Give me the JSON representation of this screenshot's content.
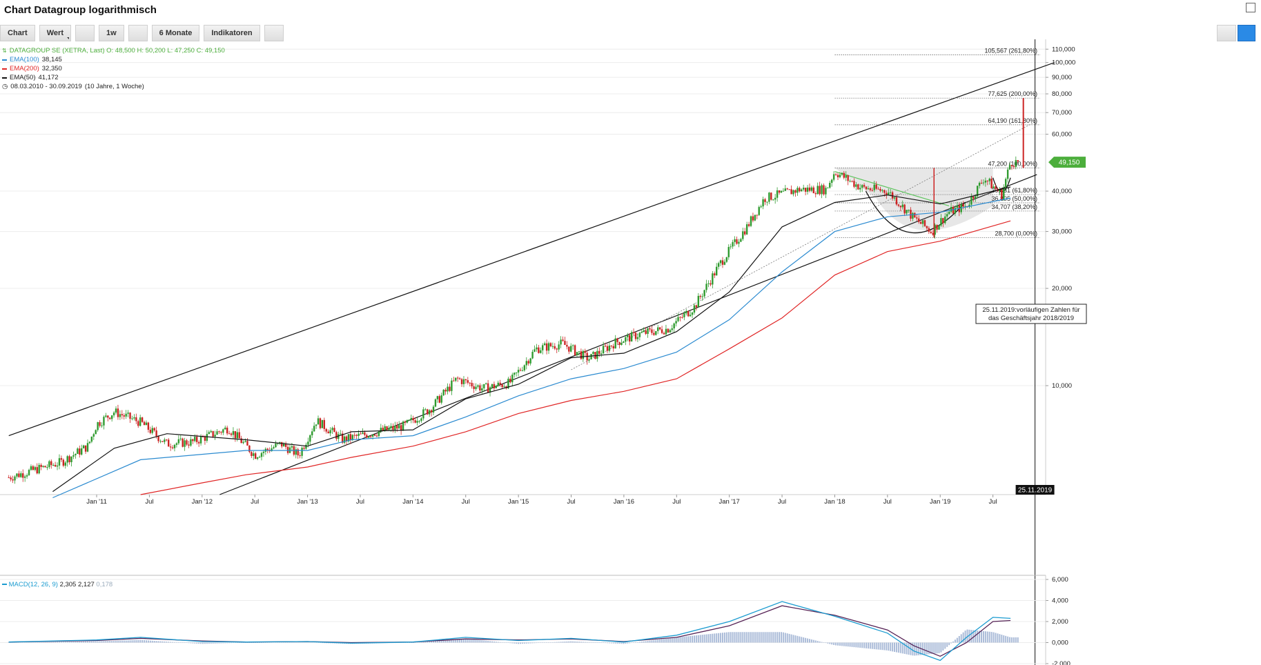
{
  "title": "Chart Datagroup logarithmisch",
  "toolbar": {
    "chart": "Chart",
    "wert": "Wert",
    "interval": "1w",
    "range": "6 Monate",
    "indicators": "Indikatoren"
  },
  "legend": {
    "security": "DATAGROUP SE (XETRA, Last)  O: 48,500  H: 50,200  L: 47,250  C: 49,150",
    "ema100_label": "EMA(100)",
    "ema100_value": "38,145",
    "ema200_label": "EMA(200)",
    "ema200_value": "32,350",
    "ema50_label": "EMA(50)",
    "ema50_value": "41,172",
    "period": "08.03.2010 - 30.09.2019",
    "period_note": "(10 Jahre, 1 Woche)"
  },
  "macd": {
    "label": "MACD(12, 26, 9)",
    "v1": "2,305",
    "v2": "2,127",
    "v3": "0,178"
  },
  "colors": {
    "price_up": "#2e9a2e",
    "price_down": "#cc2222",
    "ema50": "#111111",
    "ema100": "#2a8ad0",
    "ema200": "#e02424",
    "macd_line": "#1a9bd0",
    "signal_line": "#552255",
    "histogram": "#aabbd8",
    "current_badge": "#4cae3c"
  },
  "chart_data": {
    "type": "candlestick",
    "scale": "log",
    "ylim": [
      4.6,
      118
    ],
    "y_ticks": [
      "110,000",
      "100,000",
      "90,000",
      "80,000",
      "70,000",
      "60,000",
      "40,000",
      "30,000",
      "20,000",
      "10,000"
    ],
    "x_ticks": [
      "Jan '11",
      "Jul",
      "Jan '12",
      "Jul",
      "Jan '13",
      "Jul",
      "Jan '14",
      "Jul",
      "Jan '15",
      "Jul",
      "Jan '16",
      "Jul",
      "Jan '17",
      "Jul",
      "Jan '18",
      "Jul",
      "Jan '19",
      "Jul"
    ],
    "last_price": 49.15,
    "last_price_label": "49,150",
    "close_path": [
      [
        "2010-03",
        5.2
      ],
      [
        "2010-09",
        5.8
      ],
      [
        "2010-12",
        6.5
      ],
      [
        "2011-01",
        7.6
      ],
      [
        "2011-03",
        8.3
      ],
      [
        "2011-06",
        7.7
      ],
      [
        "2011-09",
        6.6
      ],
      [
        "2011-12",
        6.7
      ],
      [
        "2012-04",
        7.4
      ],
      [
        "2012-07",
        6.1
      ],
      [
        "2012-10",
        6.6
      ],
      [
        "2012-12",
        6.1
      ],
      [
        "2013-02",
        7.8
      ],
      [
        "2013-05",
        6.8
      ],
      [
        "2013-08",
        7.1
      ],
      [
        "2013-12",
        7.5
      ],
      [
        "2014-03",
        8.5
      ],
      [
        "2014-06",
        10.5
      ],
      [
        "2014-09",
        9.8
      ],
      [
        "2014-12",
        10.2
      ],
      [
        "2015-03",
        13.0
      ],
      [
        "2015-06",
        13.5
      ],
      [
        "2015-09",
        12.1
      ],
      [
        "2015-12",
        13.6
      ],
      [
        "2016-03",
        14.5
      ],
      [
        "2016-06",
        15.0
      ],
      [
        "2016-09",
        17.5
      ],
      [
        "2016-12",
        24.0
      ],
      [
        "2017-03",
        31.0
      ],
      [
        "2017-05",
        38.0
      ],
      [
        "2017-09",
        40.5
      ],
      [
        "2017-12",
        40.5
      ],
      [
        "2018-01",
        46.0
      ],
      [
        "2018-04",
        41.0
      ],
      [
        "2018-07",
        40.0
      ],
      [
        "2018-10",
        33.0
      ],
      [
        "2018-12",
        30.0
      ],
      [
        "2019-02",
        34.5
      ],
      [
        "2019-04",
        36.0
      ],
      [
        "2019-06",
        44.0
      ],
      [
        "2019-08",
        39.0
      ],
      [
        "2019-09",
        49.15
      ]
    ],
    "ema50_path": [
      [
        "2010-08",
        4.7
      ],
      [
        "2011-03",
        6.4
      ],
      [
        "2011-09",
        7.1
      ],
      [
        "2012-06",
        6.8
      ],
      [
        "2013-01",
        6.5
      ],
      [
        "2013-06",
        7.2
      ],
      [
        "2014-01",
        7.3
      ],
      [
        "2014-07",
        9.1
      ],
      [
        "2015-01",
        10.1
      ],
      [
        "2015-07",
        12.2
      ],
      [
        "2016-01",
        12.6
      ],
      [
        "2016-07",
        14.7
      ],
      [
        "2017-01",
        19.5
      ],
      [
        "2017-07",
        31.0
      ],
      [
        "2018-01",
        36.9
      ],
      [
        "2018-07",
        38.9
      ],
      [
        "2019-01",
        36.5
      ],
      [
        "2019-09",
        41.2
      ]
    ],
    "ema100_path": [
      [
        "2010-08",
        4.5
      ],
      [
        "2011-06",
        5.9
      ],
      [
        "2012-06",
        6.3
      ],
      [
        "2013-01",
        6.3
      ],
      [
        "2013-06",
        6.8
      ],
      [
        "2014-01",
        7.0
      ],
      [
        "2014-07",
        8.0
      ],
      [
        "2015-01",
        9.3
      ],
      [
        "2015-07",
        10.5
      ],
      [
        "2016-01",
        11.3
      ],
      [
        "2016-07",
        12.7
      ],
      [
        "2017-01",
        16.0
      ],
      [
        "2017-07",
        22.5
      ],
      [
        "2018-01",
        30.0
      ],
      [
        "2018-07",
        33.3
      ],
      [
        "2019-01",
        34.4
      ],
      [
        "2019-09",
        38.1
      ]
    ],
    "ema200_path": [
      [
        "2011-06",
        4.6
      ],
      [
        "2012-01",
        5.0
      ],
      [
        "2012-06",
        5.3
      ],
      [
        "2013-01",
        5.6
      ],
      [
        "2013-06",
        6.0
      ],
      [
        "2014-01",
        6.5
      ],
      [
        "2014-07",
        7.2
      ],
      [
        "2015-01",
        8.2
      ],
      [
        "2015-07",
        9.0
      ],
      [
        "2016-01",
        9.6
      ],
      [
        "2016-07",
        10.5
      ],
      [
        "2017-01",
        13.0
      ],
      [
        "2017-07",
        16.2
      ],
      [
        "2018-01",
        22.0
      ],
      [
        "2018-07",
        26.0
      ],
      [
        "2019-01",
        28.0
      ],
      [
        "2019-09",
        32.35
      ]
    ],
    "upper_channel": [
      [
        "2010-03",
        7.0
      ],
      [
        "2020-02",
        100.0
      ]
    ],
    "lower_channel": [
      [
        "2012-03",
        4.6
      ],
      [
        "2019-12",
        45.0
      ]
    ],
    "dotted_support": [
      [
        "2015-07",
        11.2
      ],
      [
        "2019-12",
        66.0
      ]
    ],
    "cup_rim": [
      [
        "2018-01",
        46.0
      ],
      [
        "2019-02",
        36.0
      ]
    ],
    "fibonacci": [
      {
        "value": 105.567,
        "label": "105,567 (261,80%)"
      },
      {
        "value": 77.625,
        "label": "77,625 (200,00%)"
      },
      {
        "value": 64.19,
        "label": "64,190 (161,80%)"
      },
      {
        "value": 47.2,
        "label": "47,200 (100,00%)"
      },
      {
        "value": 39.031,
        "label": "39,031 (61,80%)"
      },
      {
        "value": 36.805,
        "label": "36,805 (50,00%)"
      },
      {
        "value": 34.707,
        "label": "34,707 (38,20%)"
      },
      {
        "value": 28.7,
        "label": "28,700 (0,00%)"
      }
    ],
    "event_date": "2019-11-25",
    "event_date_label": "25.11.2019",
    "annotation": "25.11.2019:vorläufigen Zahlen für das Geschäftsjahr 2018/2019",
    "macd_ticks": [
      "6,000",
      "4,000",
      "2,000",
      "0,000",
      "-2,000"
    ],
    "macd_ylim": [
      -2,
      6
    ],
    "macd_path": [
      [
        "2010-03",
        0.05
      ],
      [
        "2011-01",
        0.25
      ],
      [
        "2011-06",
        0.5
      ],
      [
        "2012-01",
        0.1
      ],
      [
        "2012-06",
        0.05
      ],
      [
        "2013-01",
        0.1
      ],
      [
        "2013-06",
        -0.05
      ],
      [
        "2014-01",
        0.05
      ],
      [
        "2014-07",
        0.5
      ],
      [
        "2015-01",
        0.2
      ],
      [
        "2015-07",
        0.4
      ],
      [
        "2016-01",
        0.05
      ],
      [
        "2016-07",
        0.7
      ],
      [
        "2017-01",
        2.0
      ],
      [
        "2017-07",
        3.9
      ],
      [
        "2018-01",
        2.5
      ],
      [
        "2018-07",
        0.9
      ],
      [
        "2018-10",
        -0.8
      ],
      [
        "2019-01",
        -1.7
      ],
      [
        "2019-04",
        0.5
      ],
      [
        "2019-07",
        2.4
      ],
      [
        "2019-09",
        2.3
      ]
    ],
    "signal_path": [
      [
        "2010-03",
        0.05
      ],
      [
        "2011-01",
        0.2
      ],
      [
        "2011-06",
        0.4
      ],
      [
        "2012-01",
        0.15
      ],
      [
        "2012-06",
        0.05
      ],
      [
        "2013-01",
        0.1
      ],
      [
        "2013-06",
        0.0
      ],
      [
        "2014-01",
        0.05
      ],
      [
        "2014-07",
        0.35
      ],
      [
        "2015-01",
        0.25
      ],
      [
        "2015-07",
        0.35
      ],
      [
        "2016-01",
        0.1
      ],
      [
        "2016-07",
        0.5
      ],
      [
        "2017-01",
        1.6
      ],
      [
        "2017-07",
        3.5
      ],
      [
        "2018-01",
        2.6
      ],
      [
        "2018-07",
        1.2
      ],
      [
        "2018-10",
        -0.3
      ],
      [
        "2019-01",
        -1.3
      ],
      [
        "2019-04",
        0.0
      ],
      [
        "2019-07",
        2.0
      ],
      [
        "2019-09",
        2.1
      ]
    ]
  }
}
